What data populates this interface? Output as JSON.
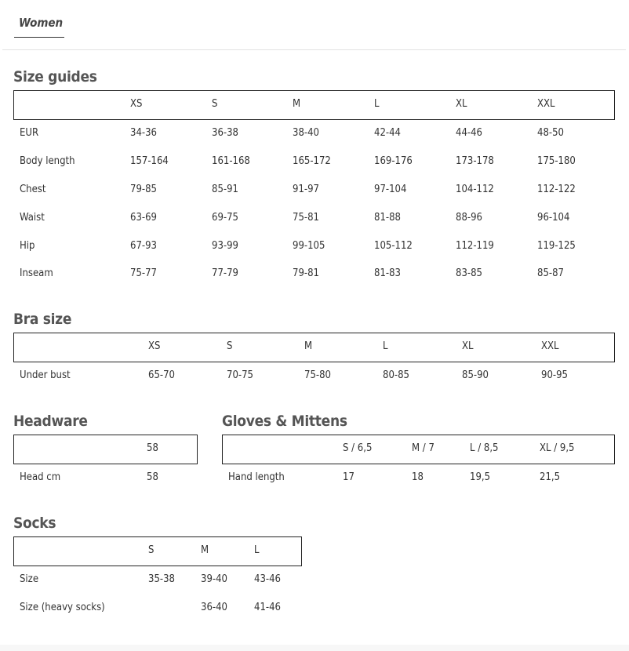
{
  "tabs": [
    {
      "label": "Women",
      "active": true
    }
  ],
  "sections": {
    "size_guides": {
      "title": "Size guides",
      "headers": [
        "",
        "XS",
        "S",
        "M",
        "L",
        "XL",
        "XXL"
      ],
      "rows": [
        [
          "EUR",
          "34-36",
          "36-38",
          "38-40",
          "42-44",
          "44-46",
          "48-50"
        ],
        [
          "Body length",
          "157-164",
          "161-168",
          "165-172",
          "169-176",
          "173-178",
          "175-180"
        ],
        [
          "Chest",
          "79-85",
          "85-91",
          "91-97",
          "97-104",
          "104-112",
          "112-122"
        ],
        [
          "Waist",
          "63-69",
          "69-75",
          "75-81",
          "81-88",
          "88-96",
          "96-104"
        ],
        [
          "Hip",
          "67-93",
          "93-99",
          "99-105",
          "105-112",
          "112-119",
          "119-125"
        ],
        [
          "Inseam",
          "75-77",
          "77-79",
          "79-81",
          "81-83",
          "83-85",
          "85-87"
        ]
      ]
    },
    "bra_size": {
      "title": "Bra size",
      "headers": [
        "",
        "XS",
        "S",
        "M",
        "L",
        "XL",
        "XXL"
      ],
      "rows": [
        [
          "Under bust",
          "65-70",
          "70-75",
          "75-80",
          "80-85",
          "85-90",
          "90-95"
        ]
      ]
    },
    "headware": {
      "title": "Headware",
      "headers": [
        "",
        "58"
      ],
      "rows": [
        [
          "Head cm",
          "58"
        ]
      ]
    },
    "gloves": {
      "title": "Gloves & Mittens",
      "headers": [
        "",
        "S / 6,5",
        "M / 7",
        "L / 8,5",
        "XL / 9,5"
      ],
      "rows": [
        [
          "Hand length",
          "17",
          "18",
          "19,5",
          "21,5"
        ]
      ]
    },
    "socks": {
      "title": "Socks",
      "headers": [
        "",
        "S",
        "M",
        "L"
      ],
      "rows": [
        [
          "Size",
          "35-38",
          "39-40",
          "43-46"
        ],
        [
          "Size (heavy socks)",
          "",
          "36-40",
          "41-46"
        ]
      ]
    }
  }
}
